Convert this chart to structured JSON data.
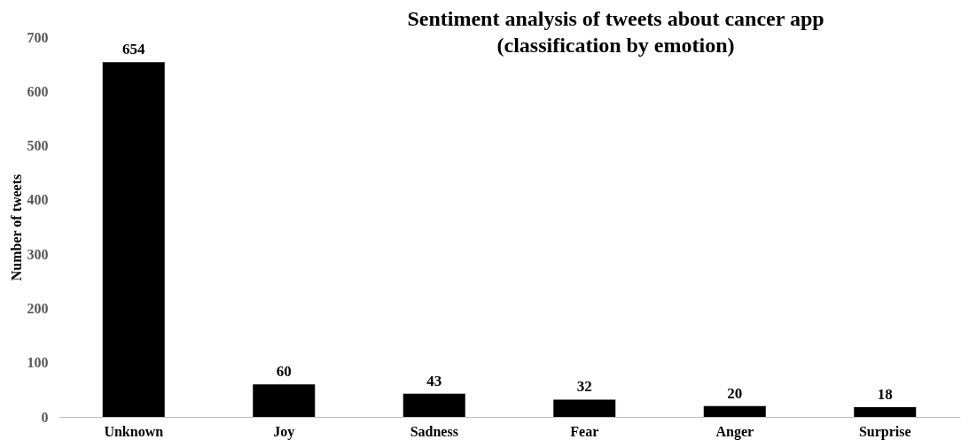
{
  "chart_data": {
    "type": "bar",
    "title": "Sentiment analysis of tweets about cancer app\n(classification by emotion)",
    "ylabel": "Number of tweets",
    "categories": [
      "Unknown",
      "Joy",
      "Sadness",
      "Fear",
      "Anger",
      "Surprise"
    ],
    "values": [
      654,
      60,
      43,
      32,
      20,
      18
    ],
    "color": "#000000",
    "ylim": [
      0,
      700
    ],
    "yticks": [
      0,
      100,
      200,
      300,
      400,
      500,
      600,
      700
    ],
    "grid": false,
    "data_labels": true
  }
}
